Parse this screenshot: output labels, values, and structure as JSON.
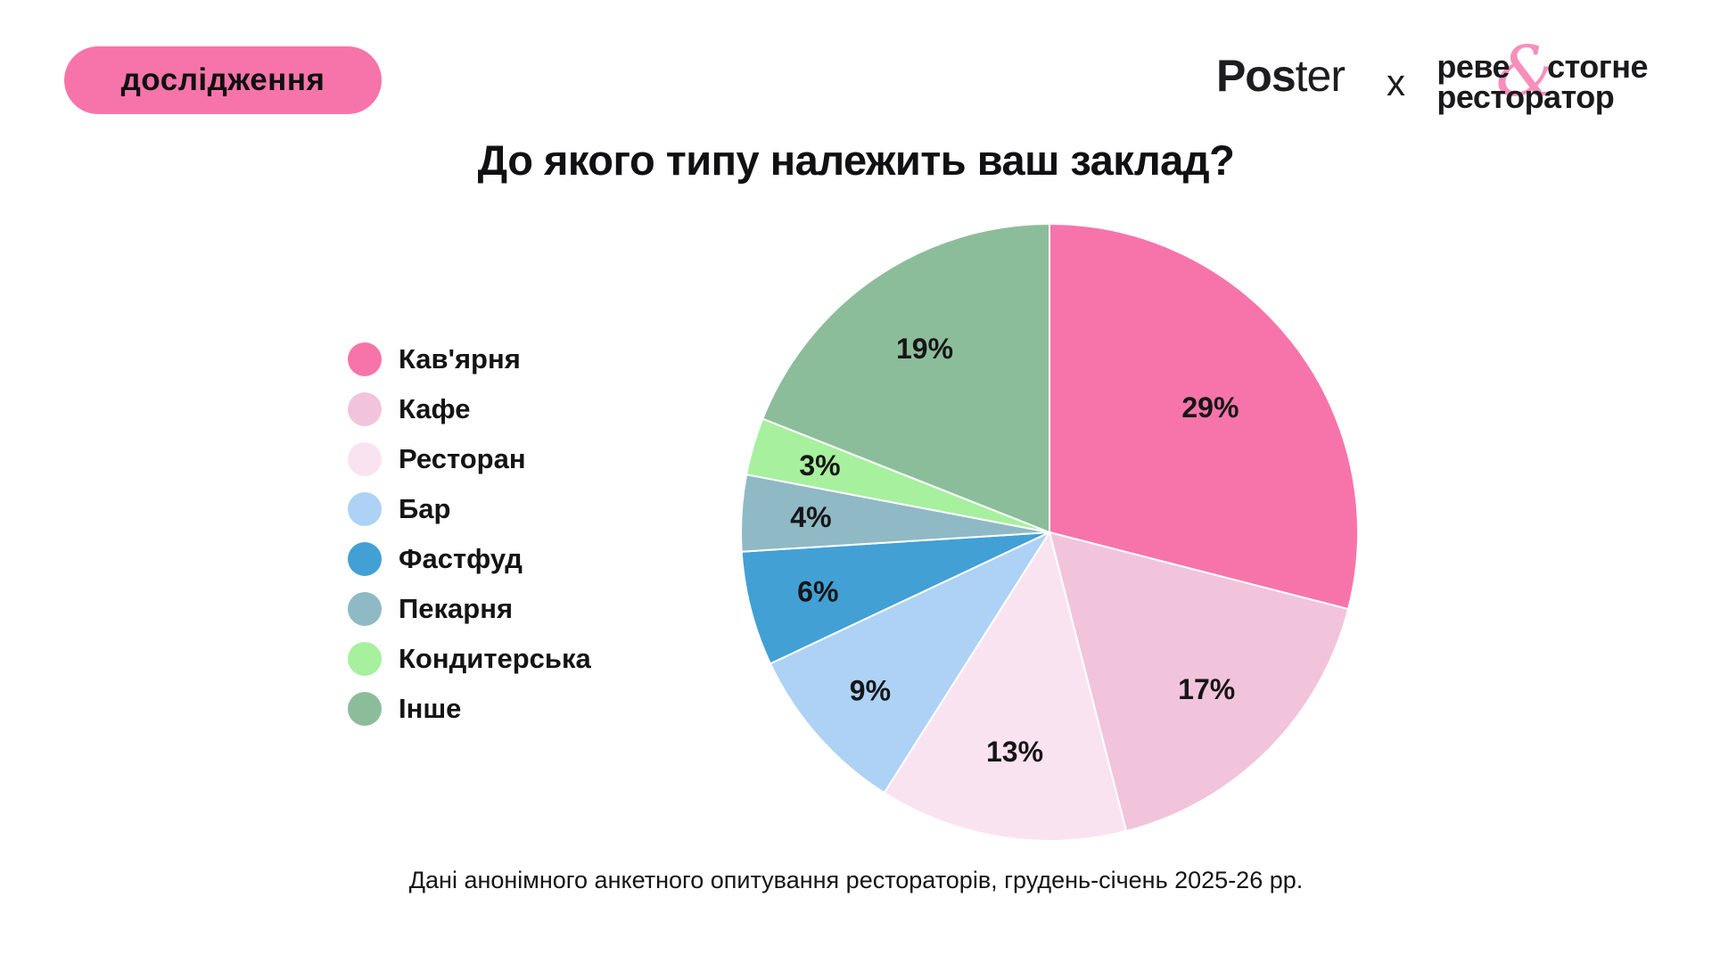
{
  "badge": {
    "label": "дослідження",
    "bg": "#F774AB"
  },
  "logos": {
    "poster_bold": "Pos",
    "poster_light": "ter",
    "separator": "x",
    "partner_line1_pre": "реве",
    "partner_amp": "&",
    "partner_line1_post": "стогне",
    "partner_line2": "ресторатор",
    "amp_color": "#F78FBC"
  },
  "title": "До якого типу належить ваш заклад?",
  "footer": "Дані анонімного анкетного опитування рестораторів, грудень-січень 2025-26 рр.",
  "chart_data": {
    "type": "pie",
    "title": "До якого типу належить ваш заклад?",
    "unit": "%",
    "direction": "clockwise",
    "start_angle_deg": 0,
    "legend_position": "left",
    "grid": false,
    "categories": [
      "Кав'ярня",
      "Кафе",
      "Ресторан",
      "Бар",
      "Фастфуд",
      "Пекарня",
      "Кондитерська",
      "Інше"
    ],
    "values": [
      29,
      17,
      13,
      9,
      6,
      4,
      3,
      19
    ],
    "labels": [
      "29%",
      "17%",
      "13%",
      "9%",
      "6%",
      "4%",
      "3%",
      "19%"
    ],
    "colors": [
      "#F774AB",
      "#F2C4DB",
      "#FAE3F0",
      "#ADD2F5",
      "#42A0D5",
      "#8FB9C5",
      "#A7F09E",
      "#8CBD9B"
    ],
    "source_note": "Дані анонімного анкетного опитування рестораторів, грудень-січень 2025-26 рр."
  }
}
